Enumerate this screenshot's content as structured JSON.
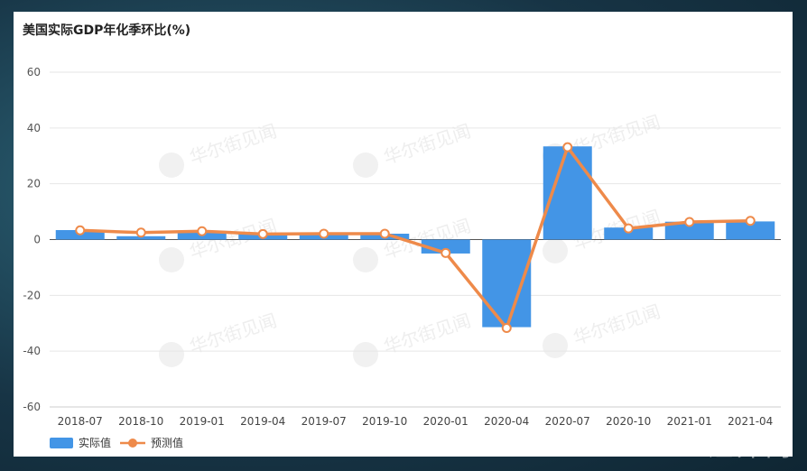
{
  "chart_data": {
    "type": "bar",
    "title": "美国实际GDP年化季环比(%)",
    "categories": [
      "2018-07",
      "2018-10",
      "2019-01",
      "2019-04",
      "2019-07",
      "2019-10",
      "2020-01",
      "2020-04",
      "2020-07",
      "2020-10",
      "2021-01",
      "2021-04"
    ],
    "ylim": [
      -60,
      60
    ],
    "yticks": [
      60,
      40,
      20,
      0,
      -20,
      -40,
      -60
    ],
    "grid": true,
    "legend_position": "bottom-left",
    "series": [
      {
        "name": "实际值",
        "kind": "bar",
        "color": "#4395e6",
        "values": [
          3.4,
          1.2,
          3.1,
          2.0,
          2.1,
          2.1,
          -5.0,
          -31.4,
          33.4,
          4.3,
          6.4,
          6.5
        ]
      },
      {
        "name": "预测值",
        "kind": "line",
        "color": "#ee8a4a",
        "values": [
          3.3,
          2.5,
          3.0,
          2.0,
          2.1,
          2.1,
          -4.8,
          -31.7,
          33.1,
          4.0,
          6.3,
          6.7
        ]
      }
    ]
  },
  "watermark_text": "华尔街见闻",
  "corner_mark": "汇外网"
}
